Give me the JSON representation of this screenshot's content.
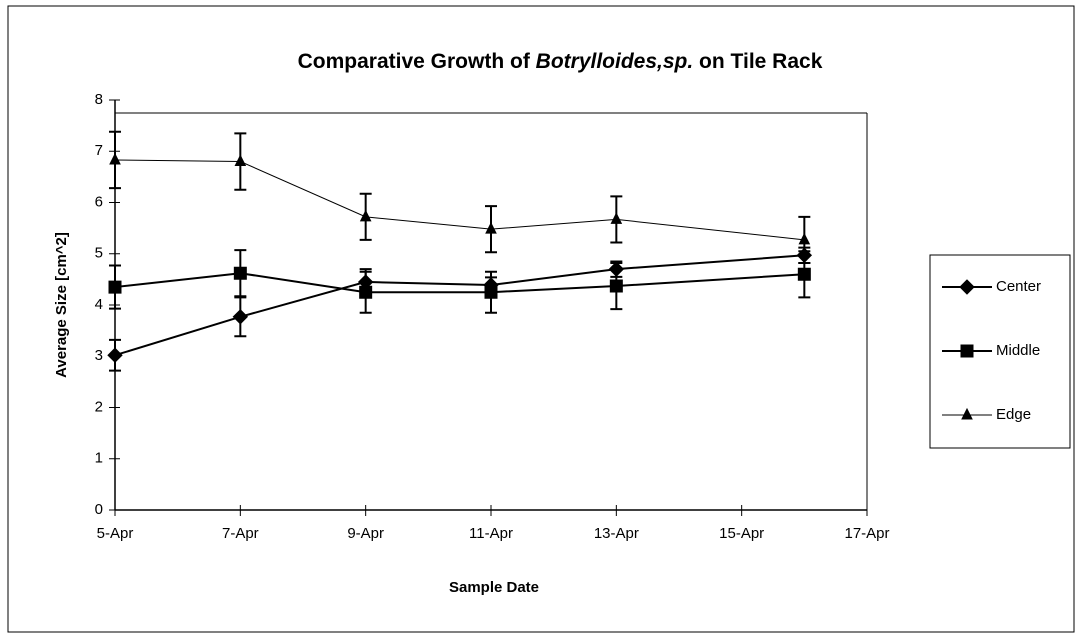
{
  "chart_data": {
    "type": "line",
    "title": [
      "Comparative Growth of",
      "Botrylloides,sp.",
      "on Tile Rack"
    ],
    "xlabel": "Sample Date",
    "ylabel": "Average Size  [cm^2]",
    "x": [
      "5-Apr",
      "7-Apr",
      "9-Apr",
      "11-Apr",
      "13-Apr",
      "16-Apr"
    ],
    "xlim": [
      "5-Apr",
      "17-Apr"
    ],
    "xticks": [
      "5-Apr",
      "7-Apr",
      "9-Apr",
      "11-Apr",
      "13-Apr",
      "15-Apr",
      "17-Apr"
    ],
    "ylim": [
      0,
      8
    ],
    "yticks": [
      0,
      1,
      2,
      3,
      4,
      5,
      6,
      7,
      8
    ],
    "grid": false,
    "legend": "right",
    "series": [
      {
        "name": "Center",
        "color": "#000000",
        "marker": "diamond",
        "values": [
          3.02,
          3.77,
          4.45,
          4.39,
          4.7,
          4.97
        ],
        "errors": [
          0.3,
          0.38,
          0.25,
          0.15,
          0.15,
          0.15
        ]
      },
      {
        "name": "Middle",
        "color": "#000000",
        "marker": "square",
        "values": [
          4.35,
          4.62,
          4.25,
          4.25,
          4.37,
          4.6
        ],
        "errors": [
          0.42,
          0.45,
          0.4,
          0.4,
          0.45,
          0.45
        ]
      },
      {
        "name": "Edge",
        "color": "#000000",
        "marker": "triangle",
        "values": [
          6.83,
          6.8,
          5.72,
          5.48,
          5.67,
          5.27
        ],
        "errors": [
          0.55,
          0.55,
          0.45,
          0.45,
          0.45,
          0.45
        ]
      }
    ]
  }
}
